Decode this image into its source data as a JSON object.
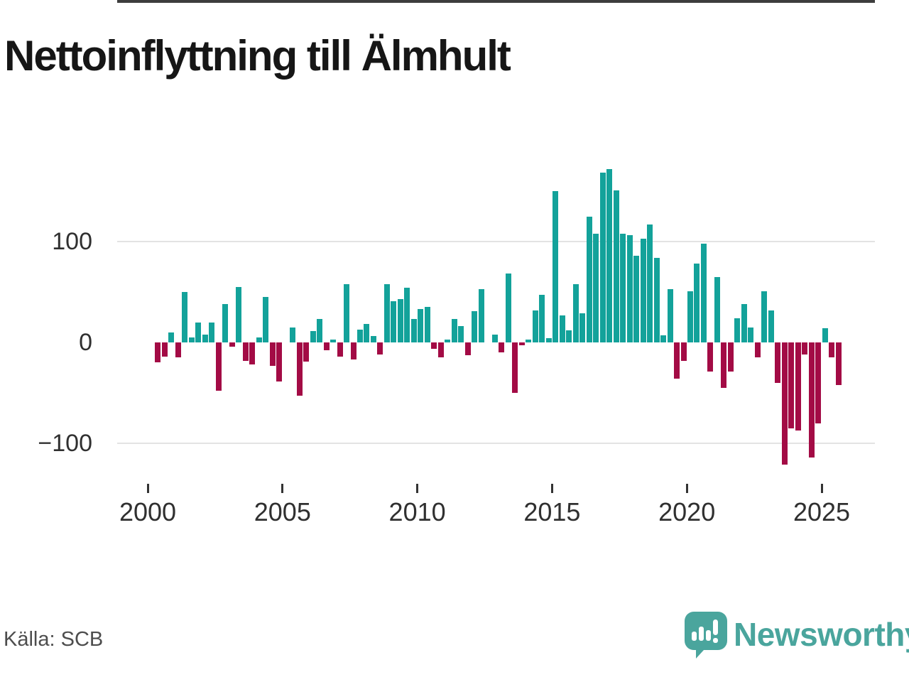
{
  "page": {
    "title": "Nettoinflyttning till Älmhult",
    "source": "Källa: SCB"
  },
  "branding": {
    "name": "Newsworthy",
    "icon": "newsworthy-pin-barchart-logo"
  },
  "colors": {
    "positive_bar": "#13a29a",
    "negative_bar": "#a30b45",
    "brand_teal": "#4aa59d",
    "grid": "#e3e3e3",
    "axis": "#3d3d3d",
    "tick_text": "#303030",
    "source_text": "#4d4d4d",
    "title_text": "#161616",
    "background": "#ffffff"
  },
  "chart_data": {
    "type": "bar",
    "title": "Nettoinflyttning till Älmhult",
    "frequency": "quarterly",
    "start": "2000Q1",
    "end": "2025Q3",
    "grid": "horizontal gridlines at 100 and -100, solid dark axis at 0",
    "legend_position": "none",
    "ylim": [
      -135,
      185
    ],
    "y_ticks": [
      100,
      0,
      -100
    ],
    "y_tick_labels": [
      "100",
      "0",
      "−100"
    ],
    "x_tick_years": [
      2000,
      2005,
      2010,
      2015,
      2020,
      2025
    ],
    "x_tick_labels": [
      "2000",
      "2005",
      "2010",
      "2015",
      "2020",
      "2025"
    ],
    "x": [
      "2000Q1",
      "2000Q2",
      "2000Q3",
      "2000Q4",
      "2001Q1",
      "2001Q2",
      "2001Q3",
      "2001Q4",
      "2002Q1",
      "2002Q2",
      "2002Q3",
      "2002Q4",
      "2003Q1",
      "2003Q2",
      "2003Q3",
      "2003Q4",
      "2004Q1",
      "2004Q2",
      "2004Q3",
      "2004Q4",
      "2005Q1",
      "2005Q2",
      "2005Q3",
      "2005Q4",
      "2006Q1",
      "2006Q2",
      "2006Q3",
      "2006Q4",
      "2007Q1",
      "2007Q2",
      "2007Q3",
      "2007Q4",
      "2008Q1",
      "2008Q2",
      "2008Q3",
      "2008Q4",
      "2009Q1",
      "2009Q2",
      "2009Q3",
      "2009Q4",
      "2010Q1",
      "2010Q2",
      "2010Q3",
      "2010Q4",
      "2011Q1",
      "2011Q2",
      "2011Q3",
      "2011Q4",
      "2012Q1",
      "2012Q2",
      "2012Q3",
      "2012Q4",
      "2013Q1",
      "2013Q2",
      "2013Q3",
      "2013Q4",
      "2014Q1",
      "2014Q2",
      "2014Q3",
      "2014Q4",
      "2015Q1",
      "2015Q2",
      "2015Q3",
      "2015Q4",
      "2016Q1",
      "2016Q2",
      "2016Q3",
      "2016Q4",
      "2017Q1",
      "2017Q2",
      "2017Q3",
      "2017Q4",
      "2018Q1",
      "2018Q2",
      "2018Q3",
      "2018Q4",
      "2019Q1",
      "2019Q2",
      "2019Q3",
      "2019Q4",
      "2020Q1",
      "2020Q2",
      "2020Q3",
      "2020Q4",
      "2021Q1",
      "2021Q2",
      "2021Q3",
      "2021Q4",
      "2022Q1",
      "2022Q2",
      "2022Q3",
      "2022Q4",
      "2023Q1",
      "2023Q2",
      "2023Q3",
      "2023Q4",
      "2024Q1",
      "2024Q2",
      "2024Q3",
      "2024Q4",
      "2025Q1",
      "2025Q2",
      "2025Q3"
    ],
    "series": [
      {
        "name": "Nettoinflyttning",
        "values": [
          0,
          -20,
          -14,
          10,
          -15,
          50,
          5,
          20,
          8,
          20,
          -48,
          38,
          -4,
          55,
          -18,
          -22,
          5,
          45,
          -23,
          -39,
          0,
          15,
          -53,
          -19,
          11,
          23,
          -8,
          3,
          -14,
          58,
          -17,
          13,
          18,
          6,
          -12,
          58,
          41,
          43,
          54,
          23,
          33,
          35,
          -6,
          -15,
          3,
          23,
          16,
          -13,
          31,
          53,
          0,
          8,
          -10,
          68,
          -50,
          -3,
          3,
          32,
          47,
          4,
          150,
          27,
          12,
          58,
          29,
          125,
          108,
          168,
          172,
          151,
          108,
          106,
          86,
          103,
          117,
          84,
          7,
          53,
          -36,
          -18,
          51,
          78,
          98,
          -29,
          65,
          -45,
          -29,
          24,
          38,
          15,
          -15,
          51,
          32,
          -40,
          -121,
          -85,
          -87,
          -12,
          -114,
          -80,
          14,
          -15,
          -42
        ]
      }
    ]
  }
}
